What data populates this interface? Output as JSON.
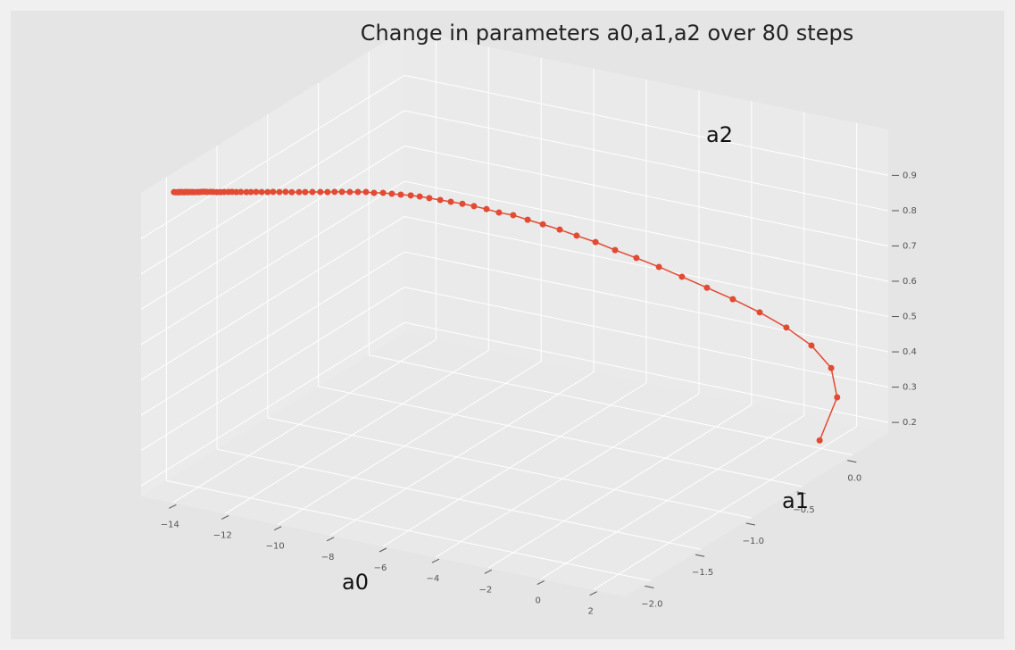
{
  "chart_data": {
    "type": "line3d",
    "title": "Change in parameters a0,a1,a2 over 80 steps",
    "xlabel": "a0",
    "ylabel": "a1",
    "zlabel": "a2",
    "color": "#E24A33",
    "grid": true,
    "xlim": [
      -15.2,
      3.2
    ],
    "ylim": [
      -2.25,
      0.35
    ],
    "zlim": [
      0.17,
      1.03
    ],
    "xticks": [
      {
        "value": -14,
        "label": "−14"
      },
      {
        "value": -12,
        "label": "−12"
      },
      {
        "value": -10,
        "label": "−10"
      },
      {
        "value": -8,
        "label": "−8"
      },
      {
        "value": -6,
        "label": "−6"
      },
      {
        "value": -4,
        "label": "−4"
      },
      {
        "value": -2,
        "label": "−2"
      },
      0,
      2
    ],
    "yticks": [
      {
        "value": -2.0,
        "label": "−2.0"
      },
      {
        "value": -1.5,
        "label": "−1.5"
      },
      {
        "value": -1.0,
        "label": "−1.0"
      },
      {
        "value": -0.5,
        "label": "−0.5"
      },
      {
        "value": 0.0,
        "label": "0.0"
      }
    ],
    "zticks": [
      0.2,
      0.3,
      0.4,
      0.5,
      0.6,
      0.7,
      0.8,
      0.9
    ],
    "x": [
      1.94,
      2.99,
      3.13,
      2.73,
      2.1,
      1.4,
      0.68,
      -0.02,
      -0.7,
      -1.32,
      -1.94,
      -2.52,
      -3.04,
      -3.55,
      -4.0,
      -4.45,
      -4.85,
      -5.23,
      -5.61,
      -5.93,
      -6.26,
      -6.57,
      -6.88,
      -7.15,
      -7.45,
      -7.7,
      -7.94,
      -8.21,
      -8.46,
      -8.7,
      -8.96,
      -9.18,
      -9.41,
      -9.64,
      -9.87,
      -10.08,
      -10.29,
      -10.5,
      -10.74,
      -10.96,
      -11.15,
      -11.37,
      -11.56,
      -11.75,
      -11.95,
      -12.11,
      -12.3,
      -12.48,
      -12.64,
      -12.78,
      -12.96,
      -13.1,
      -13.23,
      -13.35,
      -13.49,
      -13.6,
      -13.72,
      -13.83,
      -13.91,
      -14.02,
      -14.11,
      -14.2,
      -14.28,
      -14.33,
      -14.42,
      -14.47,
      -14.52,
      -14.58,
      -14.64,
      -14.66,
      -14.72,
      -14.73,
      -14.8,
      -14.82,
      -14.85,
      -14.87,
      -14.89,
      -14.92,
      -14.98,
      -15.04
    ],
    "y": [
      0.0,
      -0.1,
      -0.195,
      -0.286,
      -0.37,
      -0.452,
      -0.53,
      -0.604,
      -0.674,
      -0.74,
      -0.802,
      -0.862,
      -0.92,
      -0.974,
      -1.024,
      -1.074,
      -1.12,
      -1.164,
      -1.206,
      -1.246,
      -1.284,
      -1.318,
      -1.352,
      -1.386,
      -1.416,
      -1.446,
      -1.472,
      -1.5,
      -1.524,
      -1.548,
      -1.57,
      -1.592,
      -1.612,
      -1.632,
      -1.65,
      -1.668,
      -1.684,
      -1.7,
      -1.716,
      -1.73,
      -1.742,
      -1.756,
      -1.768,
      -1.78,
      -1.79,
      -1.802,
      -1.812,
      -1.82,
      -1.83,
      -1.838,
      -1.846,
      -1.854,
      -1.862,
      -1.868,
      -1.874,
      -1.88,
      -1.886,
      -1.892,
      -1.898,
      -1.904,
      -1.908,
      -1.912,
      -1.916,
      -1.92,
      -1.924,
      -1.928,
      -1.932,
      -1.936,
      -1.938,
      -1.942,
      -1.944,
      -1.948,
      -1.95,
      -1.952,
      -1.954,
      -1.958,
      -1.96,
      -1.962,
      -1.964,
      -1.966
    ],
    "z": [
      0.192,
      0.348,
      0.45,
      0.524,
      0.58,
      0.627,
      0.667,
      0.702,
      0.735,
      0.765,
      0.792,
      0.816,
      0.841,
      0.861,
      0.88,
      0.897,
      0.912,
      0.927,
      0.936,
      0.948,
      0.958,
      0.966,
      0.973,
      0.98,
      0.986,
      0.992,
      0.996,
      0.999,
      1.002,
      1.005,
      1.005,
      1.008,
      1.008,
      1.008,
      1.008,
      1.008,
      1.007,
      1.007,
      1.006,
      1.005,
      1.004,
      1.003,
      1.003,
      1.002,
      1.001,
      1.0,
      0.999,
      0.998,
      0.997,
      0.996,
      0.995,
      0.994,
      0.994,
      0.993,
      0.992,
      0.991,
      0.99,
      0.99,
      0.99,
      0.989,
      0.989,
      0.988,
      0.987,
      0.987,
      0.986,
      0.986,
      0.986,
      0.986,
      0.985,
      0.986,
      0.985,
      0.985,
      0.985,
      0.985,
      0.985,
      0.985,
      0.985,
      0.985,
      0.984,
      0.984
    ]
  }
}
